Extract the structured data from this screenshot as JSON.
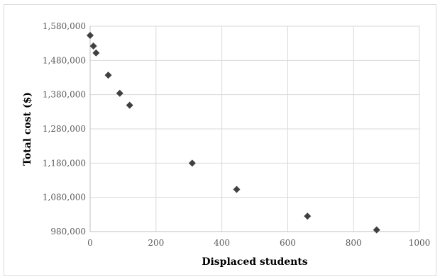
{
  "chart_data": {
    "type": "scatter",
    "title": "",
    "xlabel": "Displaced students",
    "ylabel": "Total cost ($)",
    "xlim": [
      0,
      1000
    ],
    "ylim": [
      980000,
      1580000
    ],
    "x_ticks": [
      0,
      200,
      400,
      600,
      800,
      1000
    ],
    "x_tick_labels": [
      "0",
      "200",
      "400",
      "600",
      "800",
      "1000"
    ],
    "y_ticks": [
      980000,
      1080000,
      1180000,
      1280000,
      1380000,
      1480000,
      1580000
    ],
    "y_tick_labels": [
      "980,000",
      "1,080,000",
      "1,180,000",
      "1,280,000",
      "1,380,000",
      "1,480,000",
      "1,580,000"
    ],
    "grid": true,
    "legend": "none",
    "marker": "diamond",
    "marker_color": "#404040",
    "grid_color": "#d9d9d9",
    "series": [
      {
        "x": [
          0,
          10,
          18,
          55,
          90,
          120,
          310,
          445,
          660,
          870
        ],
        "y": [
          1553000,
          1522000,
          1502000,
          1437000,
          1384000,
          1349000,
          1180000,
          1103000,
          1025000,
          985000
        ]
      }
    ]
  }
}
